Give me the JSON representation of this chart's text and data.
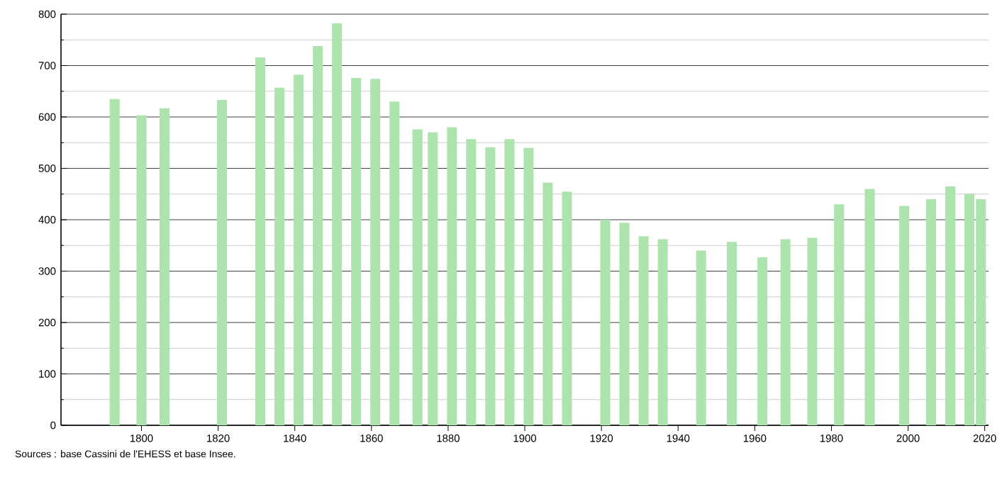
{
  "chart_data": {
    "type": "bar",
    "x": [
      1793,
      1800,
      1806,
      1821,
      1831,
      1836,
      1841,
      1846,
      1851,
      1856,
      1861,
      1866,
      1872,
      1876,
      1881,
      1886,
      1891,
      1896,
      1901,
      1906,
      1911,
      1921,
      1926,
      1931,
      1936,
      1946,
      1954,
      1962,
      1968,
      1975,
      1982,
      1990,
      1999,
      2006,
      2011,
      2016,
      2019
    ],
    "values": [
      635,
      603,
      617,
      633,
      716,
      657,
      682,
      738,
      782,
      676,
      674,
      630,
      576,
      570,
      580,
      557,
      541,
      557,
      540,
      472,
      455,
      400,
      394,
      368,
      362,
      340,
      357,
      327,
      362,
      365,
      430,
      460,
      427,
      440,
      465,
      450,
      440
    ],
    "color": "#ade3ad",
    "xlim": [
      1779,
      2021
    ],
    "xticks": [
      1800,
      1820,
      1840,
      1860,
      1880,
      1900,
      1920,
      1940,
      1960,
      1980,
      2000,
      2020
    ],
    "ylim": [
      0,
      800
    ],
    "yticks": [
      0,
      {
        "value": 50,
        "label": null
      },
      100,
      {
        "value": 150,
        "label": null
      },
      200,
      {
        "value": 250,
        "label": null
      },
      300,
      {
        "value": 350,
        "label": null
      },
      400,
      {
        "value": 450,
        "label": null
      },
      500,
      {
        "value": 550,
        "label": null
      },
      600,
      {
        "value": 650,
        "label": null
      },
      700,
      {
        "value": 750,
        "label": null
      },
      800
    ],
    "grid": "y",
    "annotations": [
      "Sources : base Cassini de l'EHESS et base Insee."
    ]
  }
}
